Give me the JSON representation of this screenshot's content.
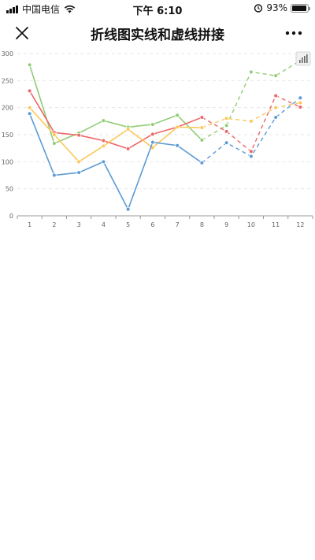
{
  "status_bar": {
    "carrier": "中国电信",
    "time": "下午 6:10",
    "battery_percent": "93%",
    "battery_level": 0.93,
    "icons": [
      "signal-icon",
      "wifi-icon",
      "alarm-icon",
      "battery-icon"
    ]
  },
  "nav": {
    "title": "折线图实线和虚线拼接",
    "close_icon": "close-icon",
    "more_icon": "more-icon"
  },
  "toolbox": {
    "icon": "bar-chart-switch-icon"
  },
  "chart_data": {
    "type": "line",
    "title": "",
    "xlabel": "",
    "ylabel": "",
    "categories": [
      "1",
      "2",
      "3",
      "4",
      "5",
      "6",
      "7",
      "8",
      "9",
      "10",
      "11",
      "12"
    ],
    "ylim": [
      0,
      300
    ],
    "yticks": [
      0,
      50,
      100,
      150,
      200,
      250,
      300
    ],
    "grid": true,
    "solid_until_index": 7,
    "series": [
      {
        "color": "#91cc75",
        "values": [
          279,
          134,
          153,
          176,
          164,
          169,
          186,
          140,
          167,
          266,
          259,
          287
        ]
      },
      {
        "color": "#ee6666",
        "values": [
          231,
          154,
          149,
          139,
          124,
          151,
          164,
          182,
          156,
          119,
          222,
          201
        ]
      },
      {
        "color": "#fac858",
        "values": [
          200,
          150,
          100,
          129,
          160,
          126,
          164,
          163,
          180,
          175,
          200,
          209
        ]
      },
      {
        "color": "#5b9bd5",
        "values": [
          189,
          75,
          80,
          100,
          12,
          136,
          130,
          98,
          135,
          110,
          182,
          218
        ]
      }
    ]
  }
}
